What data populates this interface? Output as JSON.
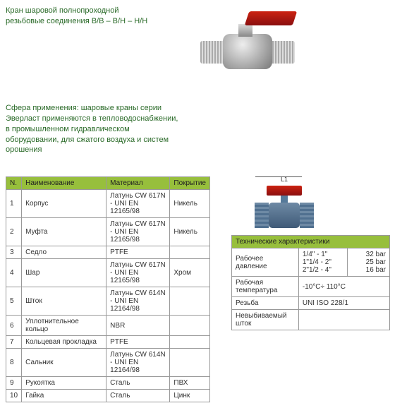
{
  "title": {
    "line1": "Кран шаровой полнопроходной",
    "line2": "резьбовые соединения В/В – В/Н – Н/Н"
  },
  "description": "Сфера применения: шаровые краны серии Эверласт применяются в тепловодоснабжении, в промышленном гидравлическом оборудовании, для сжатого воздуха и систем орошения",
  "diagram_label": "L1",
  "materials": {
    "headers": {
      "n": "N.",
      "name": "Наименование",
      "material": "Материал",
      "coating": "Покрытие"
    },
    "rows": [
      {
        "n": "1",
        "name": "Корпус",
        "material": "Латунь CW 617N - UNI EN 12165/98",
        "coating": "Никель"
      },
      {
        "n": "2",
        "name": "Муфта",
        "material": "Латунь CW 617N - UNI EN 12165/98",
        "coating": "Никель"
      },
      {
        "n": "3",
        "name": "Седло",
        "material": "PTFE",
        "coating": ""
      },
      {
        "n": "4",
        "name": "Шар",
        "material": "Латунь CW 617N - UNI EN 12165/98",
        "coating": "Хром"
      },
      {
        "n": "5",
        "name": "Шток",
        "material": "Латунь CW 614N - UNI EN 12164/98",
        "coating": ""
      },
      {
        "n": "6",
        "name": "Уплотнительное кольцо",
        "material": "NBR",
        "coating": ""
      },
      {
        "n": "7",
        "name": "Кольцевая прокладка",
        "material": "PTFE",
        "coating": ""
      },
      {
        "n": "8",
        "name": "Сальник",
        "material": "Латунь CW 614N - UNI EN 12164/98",
        "coating": ""
      },
      {
        "n": "9",
        "name": "Рукоятка",
        "material": "Сталь",
        "coating": "ПВХ"
      },
      {
        "n": "10",
        "name": "Гайка",
        "material": "Сталь",
        "coating": "Цинк"
      }
    ]
  },
  "specs": {
    "caption": "Технические характеристики",
    "rows": [
      {
        "key": "Рабочее давление",
        "v1": "1/4\" - 1\"\n1\"1/4 - 2\"\n2\"1/2 - 4\"",
        "v2": "32 bar\n25 bar\n16 bar"
      },
      {
        "key": "Рабочая температура",
        "v1": "-10°C÷ 110°C",
        "v2": ""
      },
      {
        "key": "Резьба",
        "v1": "UNI ISO 228/1",
        "v2": ""
      },
      {
        "key": "Невыбиваемый шток",
        "v1": "",
        "v2": ""
      }
    ]
  },
  "colors": {
    "header_bg": "#97bf3c",
    "text_green": "#2a6a28",
    "handle_red": "#c21919"
  }
}
